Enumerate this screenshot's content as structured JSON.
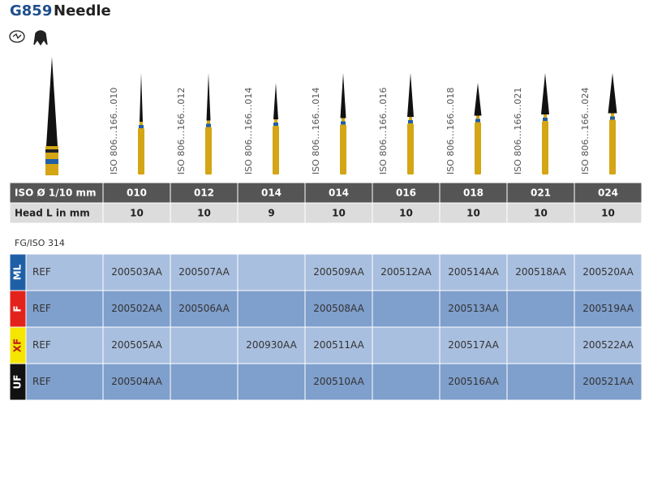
{
  "header": {
    "code": "G859",
    "name": "Needle"
  },
  "burs": [
    {
      "iso_label": "ISO 806…166…010"
    },
    {
      "iso_label": "ISO 806…166…012"
    },
    {
      "iso_label": "ISO 806…166…014"
    },
    {
      "iso_label": "ISO 806…166…014"
    },
    {
      "iso_label": "ISO 806…166…016"
    },
    {
      "iso_label": "ISO 806…166…018"
    },
    {
      "iso_label": "ISO 806…166…021"
    },
    {
      "iso_label": "ISO 806…166…024"
    }
  ],
  "spec_rows": [
    {
      "label": "ISO Ø 1/10 mm",
      "values": [
        "010",
        "012",
        "014",
        "014",
        "016",
        "018",
        "021",
        "024"
      ]
    },
    {
      "label": "Head L in mm",
      "values": [
        10,
        10,
        9,
        10,
        10,
        10,
        10,
        10
      ]
    }
  ],
  "standard": "FG/ISO 314",
  "ref_rows": [
    {
      "grit": "ML",
      "color": "#1f5fa6",
      "label": "REF",
      "refs": [
        "200503AA",
        "200507AA",
        null,
        "200509AA",
        "200512AA",
        "200514AA",
        "200518AA",
        "200520AA"
      ]
    },
    {
      "grit": "F",
      "color": "#e3231b",
      "label": "REF",
      "refs": [
        "200502AA",
        "200506AA",
        null,
        "200508AA",
        null,
        "200513AA",
        null,
        "200519AA"
      ]
    },
    {
      "grit": "XF",
      "color": "#f4e600",
      "label": "REF",
      "refs": [
        "200505AA",
        null,
        "200930AA",
        "200511AA",
        null,
        "200517AA",
        null,
        "200522AA"
      ]
    },
    {
      "grit": "UF",
      "color": "#111111",
      "label": "REF",
      "refs": [
        "200504AA",
        null,
        null,
        "200510AA",
        null,
        "200516AA",
        null,
        "200521AA"
      ]
    }
  ]
}
